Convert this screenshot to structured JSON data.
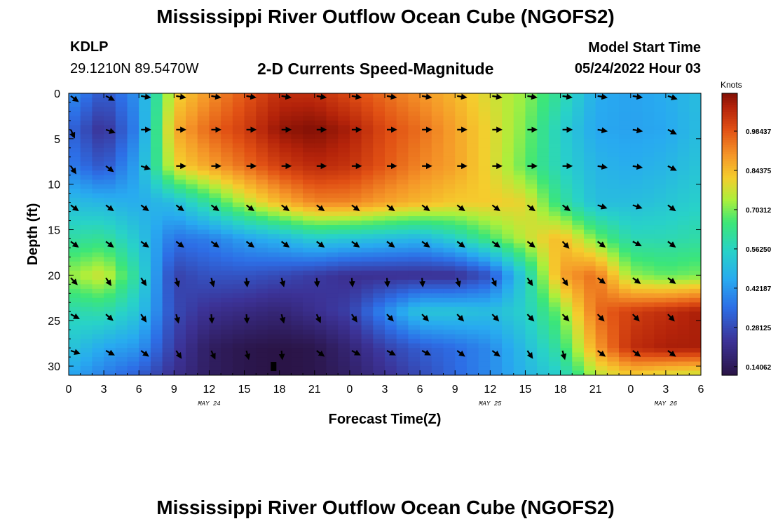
{
  "page": {
    "title": "Mississippi River Outflow Ocean Cube (NGOFS2)",
    "title_repeat": "Mississippi River Outflow Ocean Cube (NGOFS2)",
    "station": "KDLP",
    "coords": "29.1210N  89.5470W",
    "subtitle": "2-D Currents Speed-Magnitude",
    "model_start_label": "Model Start Time",
    "model_start_value": "05/24/2022 Hour 03"
  },
  "chart_data": {
    "type": "heatmap",
    "xlabel": "Forecast Time(Z)",
    "ylabel": "Depth (ft)",
    "x_tick_labels": [
      "0",
      "3",
      "6",
      "9",
      "12",
      "15",
      "18",
      "21",
      "0",
      "3",
      "6",
      "9",
      "12",
      "15",
      "18",
      "21",
      "0",
      "3",
      "6"
    ],
    "x_hours": [
      0,
      3,
      6,
      9,
      12,
      15,
      18,
      21,
      24,
      27,
      30,
      33,
      36,
      39,
      42,
      45,
      48,
      51,
      54
    ],
    "x_range_hours": [
      0,
      54
    ],
    "date_labels": [
      {
        "text": "MAY 24",
        "hour": 12
      },
      {
        "text": "MAY 25",
        "hour": 36
      },
      {
        "text": "MAY 26",
        "hour": 51
      }
    ],
    "y_ticks": [
      0,
      5,
      10,
      15,
      20,
      25,
      30
    ],
    "y_range_ft": [
      0,
      31
    ],
    "colorbar": {
      "label": "Knots",
      "tick_labels": [
        "0.98437",
        "0.84375",
        "0.70312",
        "0.56250",
        "0.42187",
        "0.28125",
        "0.14062"
      ],
      "ticks": [
        0.98437,
        0.84375,
        0.70312,
        0.5625,
        0.42187,
        0.28125,
        0.14062
      ],
      "range": [
        0.11,
        1.12
      ]
    },
    "arrow_hours": [
      0,
      3,
      6,
      9,
      12,
      15,
      18,
      21,
      24,
      27,
      30,
      33,
      36,
      39,
      42,
      45,
      48,
      51
    ],
    "arrow_depths_ft": [
      0.3,
      4,
      8,
      12.3,
      16.3,
      20.3,
      24.3,
      28.3
    ],
    "arrow_rows_deg": [
      [
        40,
        30,
        10,
        10,
        10,
        10,
        10,
        10,
        10,
        10,
        10,
        10,
        10,
        10,
        10,
        10,
        10,
        20
      ],
      [
        70,
        20,
        0,
        0,
        0,
        0,
        0,
        0,
        0,
        0,
        0,
        0,
        0,
        0,
        0,
        10,
        10,
        30
      ],
      [
        60,
        40,
        20,
        0,
        0,
        0,
        0,
        0,
        0,
        0,
        0,
        0,
        0,
        0,
        0,
        10,
        10,
        30
      ],
      [
        40,
        40,
        40,
        40,
        40,
        40,
        40,
        40,
        40,
        40,
        40,
        40,
        40,
        40,
        40,
        20,
        20,
        40
      ],
      [
        40,
        40,
        40,
        40,
        40,
        40,
        40,
        40,
        40,
        40,
        40,
        40,
        40,
        40,
        50,
        40,
        30,
        40
      ],
      [
        50,
        60,
        60,
        80,
        80,
        90,
        80,
        90,
        90,
        90,
        90,
        80,
        70,
        60,
        60,
        40,
        40,
        40
      ],
      [
        30,
        45,
        60,
        80,
        90,
        90,
        80,
        70,
        60,
        50,
        50,
        50,
        50,
        50,
        50,
        50,
        50,
        50
      ],
      [
        20,
        30,
        40,
        60,
        70,
        80,
        90,
        40,
        30,
        30,
        30,
        40,
        40,
        60,
        80,
        40,
        40,
        40
      ]
    ],
    "speed_grid": {
      "hours": [
        0,
        3,
        6,
        9,
        12,
        15,
        18,
        21,
        24,
        27,
        30,
        33,
        36,
        39,
        42,
        45,
        48,
        51,
        54
      ],
      "depths_ft": [
        0,
        4,
        8,
        12,
        16,
        20,
        24,
        28,
        31
      ],
      "values": [
        [
          0.42,
          0.3,
          0.42,
          0.8,
          0.9,
          0.98,
          1.05,
          1.05,
          1.0,
          0.95,
          0.9,
          0.85,
          0.78,
          0.72,
          0.6,
          0.46,
          0.44,
          0.46,
          0.5
        ],
        [
          0.34,
          0.22,
          0.4,
          0.86,
          0.96,
          1.02,
          1.1,
          1.12,
          1.08,
          1.0,
          0.95,
          0.88,
          0.8,
          0.7,
          0.55,
          0.45,
          0.44,
          0.45,
          0.5
        ],
        [
          0.38,
          0.3,
          0.45,
          0.8,
          0.88,
          0.95,
          1.02,
          1.06,
          1.04,
          0.98,
          0.92,
          0.88,
          0.8,
          0.68,
          0.56,
          0.48,
          0.46,
          0.48,
          0.52
        ],
        [
          0.5,
          0.48,
          0.46,
          0.5,
          0.62,
          0.75,
          0.85,
          0.92,
          0.92,
          0.88,
          0.85,
          0.82,
          0.82,
          0.8,
          0.62,
          0.5,
          0.5,
          0.52,
          0.55
        ],
        [
          0.6,
          0.62,
          0.52,
          0.36,
          0.38,
          0.44,
          0.48,
          0.54,
          0.52,
          0.5,
          0.48,
          0.55,
          0.66,
          0.76,
          0.85,
          0.7,
          0.58,
          0.58,
          0.6
        ],
        [
          0.72,
          0.78,
          0.58,
          0.26,
          0.3,
          0.3,
          0.28,
          0.25,
          0.22,
          0.22,
          0.22,
          0.22,
          0.3,
          0.55,
          0.88,
          0.95,
          0.72,
          0.68,
          0.7
        ],
        [
          0.58,
          0.6,
          0.52,
          0.28,
          0.22,
          0.2,
          0.18,
          0.22,
          0.26,
          0.4,
          0.52,
          0.52,
          0.5,
          0.55,
          0.7,
          0.95,
          1.02,
          1.05,
          1.08
        ],
        [
          0.52,
          0.45,
          0.42,
          0.25,
          0.15,
          0.12,
          0.11,
          0.12,
          0.18,
          0.26,
          0.32,
          0.35,
          0.4,
          0.5,
          0.62,
          0.88,
          1.05,
          1.08,
          1.08
        ],
        [
          0.45,
          0.38,
          0.32,
          0.22,
          0.15,
          0.12,
          0.11,
          0.12,
          0.16,
          0.22,
          0.28,
          0.34,
          0.4,
          0.48,
          0.55,
          0.75,
          0.82,
          0.78,
          0.76
        ]
      ]
    },
    "marker": {
      "hour": 17.5,
      "depth_ft": 30
    }
  }
}
